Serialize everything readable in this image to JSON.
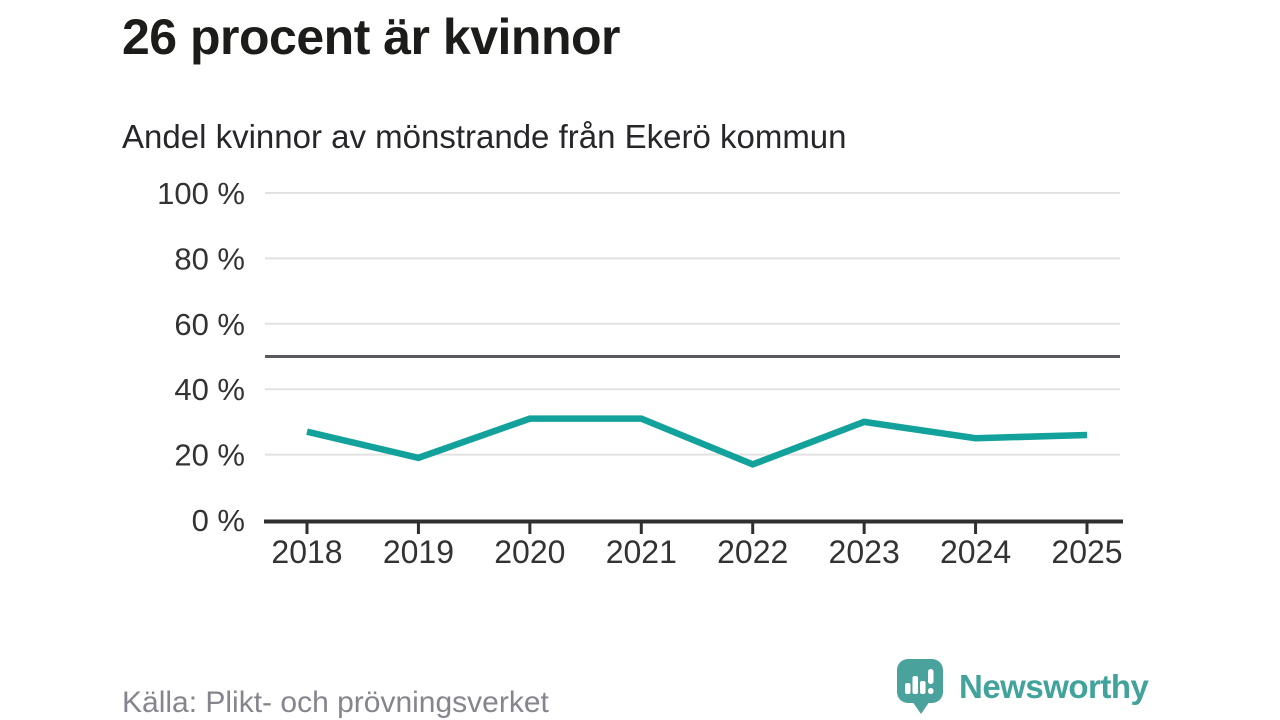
{
  "header": {
    "title": "26 procent är kvinnor",
    "subtitle": "Andel kvinnor av mönstrande från Ekerö kommun"
  },
  "footer": {
    "source": "Källa: Plikt- och prövningsverket",
    "brand": "Newsworthy"
  },
  "colors": {
    "accent": "#13a29b",
    "gridline": "#e2e2e2",
    "reference_line": "#58585e",
    "axis": "#2f2f2f",
    "tick_label": "#333333",
    "brand_teal": "#42a29c",
    "logo_bubble": "#4aa29c"
  },
  "chart_data": {
    "type": "line",
    "title": "26 procent är kvinnor",
    "subtitle": "Andel kvinnor av mönstrande från Ekerö kommun",
    "x": [
      "2018",
      "2019",
      "2020",
      "2021",
      "2022",
      "2023",
      "2024",
      "2025"
    ],
    "series": [
      {
        "name": "Andel kvinnor av mönstrande",
        "values": [
          27,
          19,
          31,
          31,
          17,
          30,
          25,
          26
        ]
      }
    ],
    "unit": "%",
    "ylim": [
      0,
      100
    ],
    "y_ticks": [
      0,
      20,
      40,
      60,
      80,
      100
    ],
    "y_tick_suffix": " %",
    "reference_line": 50,
    "grid": "horizontal",
    "legend": "none",
    "source": "Källa: Plikt- och prövningsverket"
  }
}
